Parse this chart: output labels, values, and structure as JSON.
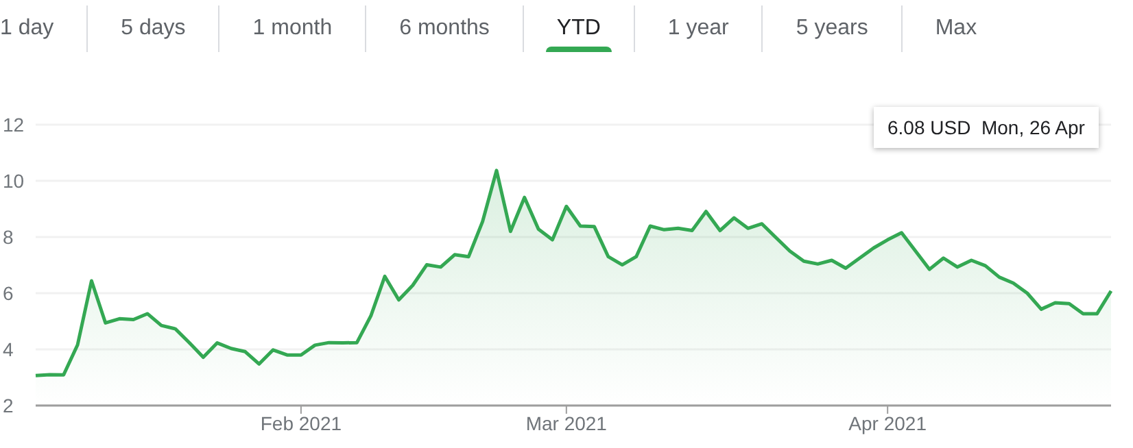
{
  "chart_data": {
    "type": "area",
    "categories": [
      null,
      null,
      null,
      null,
      null,
      null,
      null,
      null,
      null,
      null,
      null,
      null,
      null,
      null,
      null,
      null,
      null,
      null,
      null,
      "Feb 2021",
      null,
      null,
      null,
      null,
      null,
      null,
      null,
      null,
      null,
      null,
      null,
      null,
      null,
      null,
      null,
      null,
      null,
      null,
      "Mar 2021",
      null,
      null,
      null,
      null,
      null,
      null,
      null,
      null,
      null,
      null,
      null,
      null,
      null,
      null,
      null,
      null,
      null,
      null,
      null,
      null,
      null,
      null,
      "Apr 2021",
      null,
      null,
      null,
      null,
      null,
      null,
      null,
      null,
      null,
      null,
      null,
      null,
      null,
      null,
      null,
      null
    ],
    "series": [
      {
        "color": "#34a853",
        "values": [
          3.07,
          3.1,
          3.09,
          4.16,
          6.44,
          4.94,
          5.09,
          5.06,
          5.27,
          4.85,
          4.73,
          4.24,
          3.72,
          4.23,
          4.03,
          3.92,
          3.48,
          3.98,
          3.8,
          3.8,
          4.15,
          4.24,
          4.23,
          4.24,
          5.19,
          6.6,
          5.76,
          6.28,
          7.01,
          6.93,
          7.37,
          7.3,
          8.55,
          10.37,
          8.2,
          9.41,
          8.28,
          7.9,
          9.09,
          8.39,
          8.37,
          7.3,
          7.01,
          7.3,
          8.39,
          8.26,
          8.31,
          8.23,
          8.91,
          8.23,
          8.68,
          8.31,
          8.47,
          7.98,
          7.5,
          7.14,
          7.04,
          7.17,
          6.89,
          7.25,
          7.61,
          7.9,
          8.15,
          7.5,
          6.85,
          7.25,
          6.93,
          7.17,
          6.98,
          6.57,
          6.36,
          6.0,
          5.43,
          5.66,
          5.63,
          5.27,
          5.27,
          6.08
        ]
      }
    ],
    "ylim": [
      2,
      12
    ],
    "yticks": [
      2,
      4,
      6,
      8,
      10,
      12
    ],
    "grid": "y",
    "marker": "none",
    "line_style": "solid",
    "annotations": [
      "1 day",
      "5 days",
      "1 month",
      "6 months",
      "YTD",
      "1 year",
      "5 years",
      "Max",
      "6.08 USD  Mon, 26 Apr"
    ]
  }
}
